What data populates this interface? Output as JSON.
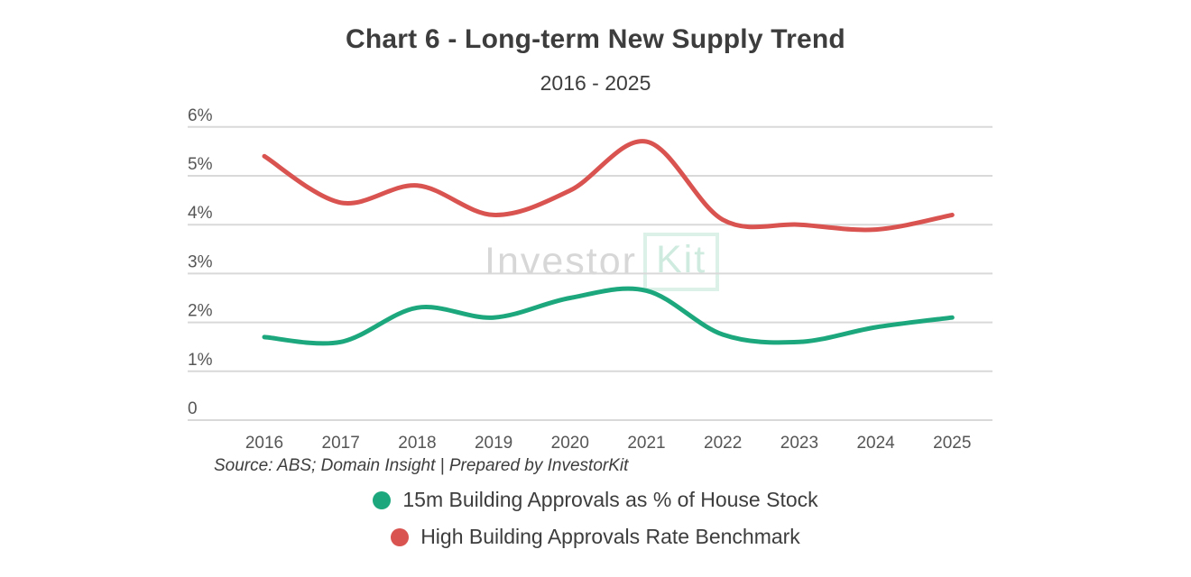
{
  "title": "Chart 6 - Long-term New Supply Trend",
  "subtitle": "2016 - 2025",
  "watermark": {
    "part_gray": "Investor",
    "part_mint": "Kit"
  },
  "source_note": "Source: ABS; Domain Insight | Prepared by InvestorKit",
  "legend": {
    "items": [
      {
        "label": "15m Building Approvals as % of House Stock",
        "color": "#1ca87c"
      },
      {
        "label": "High Building Approvals Rate Benchmark",
        "color": "#d95350"
      }
    ]
  },
  "colors": {
    "title_text": "#3d3d3d",
    "axis_label": "#565656",
    "gridline": "#d9d9d9",
    "green_line": "#1ca87c",
    "red_line": "#d95350",
    "watermark_gray": "#d7d7d7",
    "watermark_mint": "#cfebdf"
  },
  "chart_data": {
    "type": "line",
    "title": "Chart 6 - Long-term New Supply Trend",
    "subtitle": "2016 - 2025",
    "x": [
      2016,
      2017,
      2018,
      2019,
      2020,
      2021,
      2022,
      2023,
      2024,
      2025
    ],
    "series": [
      {
        "name": "15m Building Approvals as % of House Stock",
        "color": "#1ca87c",
        "values": [
          1.7,
          1.6,
          2.3,
          2.1,
          2.5,
          2.65,
          1.75,
          1.6,
          1.9,
          2.1
        ]
      },
      {
        "name": "High Building Approvals Rate Benchmark",
        "color": "#d95350",
        "values": [
          5.4,
          4.45,
          4.8,
          4.2,
          4.7,
          5.7,
          4.1,
          4.0,
          3.9,
          4.2
        ]
      }
    ],
    "y_ticks": [
      "0",
      "1%",
      "2%",
      "3%",
      "4%",
      "5%",
      "6%"
    ],
    "ylim": [
      0,
      6
    ],
    "xlabel": "",
    "ylabel": "",
    "grid": true,
    "legend_position": "bottom"
  }
}
